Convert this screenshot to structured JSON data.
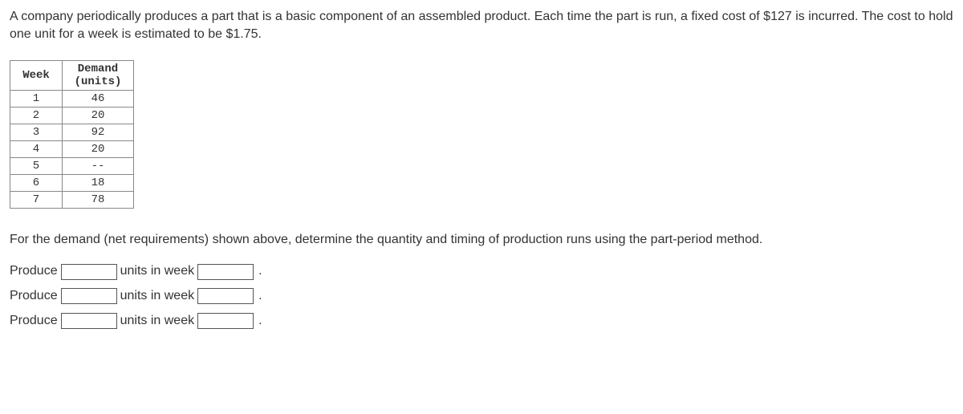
{
  "problem_text": "A company periodically produces a part that is a basic component of an assembled product. Each time the part is run, a fixed cost of $127 is incurred. The cost to hold one unit for a week is estimated to be $1.75.",
  "instruction_text": "For the demand (net requirements) shown above, determine the quantity and timing of production runs using the part-period method.",
  "table": {
    "headers": {
      "week": "Week",
      "demand": "Demand (units)"
    },
    "rows": [
      {
        "week": "1",
        "demand": "46"
      },
      {
        "week": "2",
        "demand": "20"
      },
      {
        "week": "3",
        "demand": "92"
      },
      {
        "week": "4",
        "demand": "20"
      },
      {
        "week": "5",
        "demand": "--"
      },
      {
        "week": "6",
        "demand": "18"
      },
      {
        "week": "7",
        "demand": "78"
      }
    ]
  },
  "answer": {
    "produce_label": "Produce",
    "units_label": "units in week",
    "period": ".",
    "rows": [
      {
        "qty": "",
        "week": ""
      },
      {
        "qty": "",
        "week": ""
      },
      {
        "qty": "",
        "week": ""
      }
    ]
  }
}
